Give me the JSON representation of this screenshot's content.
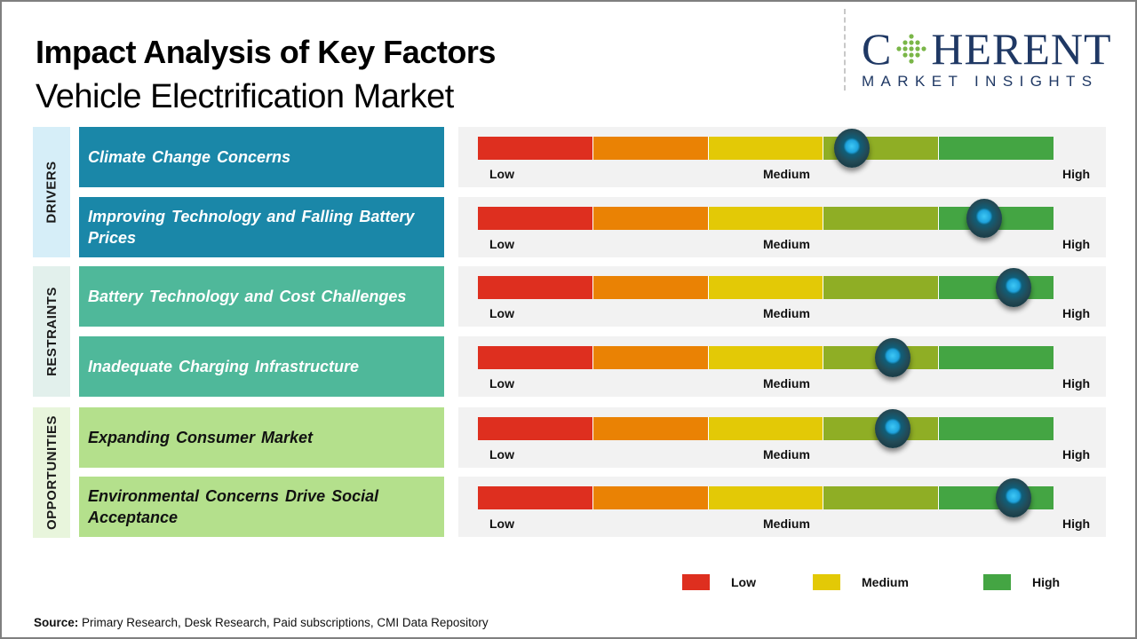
{
  "header": {
    "title": "Impact Analysis of Key Factors",
    "subtitle": "Vehicle Electrification Market"
  },
  "logo": {
    "main_left": "C",
    "main_right": "HERENT",
    "sub": "MARKET INSIGHTS"
  },
  "colors": {
    "drivers_bg": "#1a87a8",
    "drivers_cat_bg": "#d6eef8",
    "restraints_bg": "#4fb89a",
    "restraints_cat_bg": "#e2f0ec",
    "opportunities_bg": "#b4e08c",
    "opportunities_cat_bg": "#e8f5dc",
    "seg_colors": [
      "#de2f1f",
      "#ea8204",
      "#e3c906",
      "#8fae25",
      "#44a543"
    ]
  },
  "categories": [
    {
      "label": "DRIVERS"
    },
    {
      "label": "RESTRAINTS"
    },
    {
      "label": "OPPORTUNITIES"
    }
  ],
  "gauge_labels": {
    "low": "Low",
    "medium": "Medium",
    "high": "High"
  },
  "chart_data": {
    "type": "table",
    "title": "Impact Analysis of Key Factors",
    "scale": [
      "Low",
      "Medium",
      "High"
    ],
    "scale_range": [
      0,
      1
    ],
    "rows": [
      {
        "category": "DRIVERS",
        "factor": "Climate Change Concerns",
        "impact": 0.65
      },
      {
        "category": "DRIVERS",
        "factor": "Improving Technology and Falling Battery Prices",
        "impact": 0.88
      },
      {
        "category": "RESTRAINTS",
        "factor": "Battery Technology and Cost Challenges",
        "impact": 0.93
      },
      {
        "category": "RESTRAINTS",
        "factor": "Inadequate Charging Infrastructure",
        "impact": 0.72
      },
      {
        "category": "OPPORTUNITIES",
        "factor": "Expanding Consumer Market",
        "impact": 0.72
      },
      {
        "category": "OPPORTUNITIES",
        "factor": "Environmental Concerns Drive Social Acceptance",
        "impact": 0.93
      }
    ],
    "legend": [
      {
        "label": "Low",
        "color": "#de2f1f"
      },
      {
        "label": "Medium",
        "color": "#e3c906"
      },
      {
        "label": "High",
        "color": "#44a543"
      }
    ],
    "legend_position": "bottom-right"
  },
  "footer": {
    "source_label": "Source:",
    "source_text": " Primary Research, Desk Research, Paid subscriptions, CMI Data Repository"
  }
}
